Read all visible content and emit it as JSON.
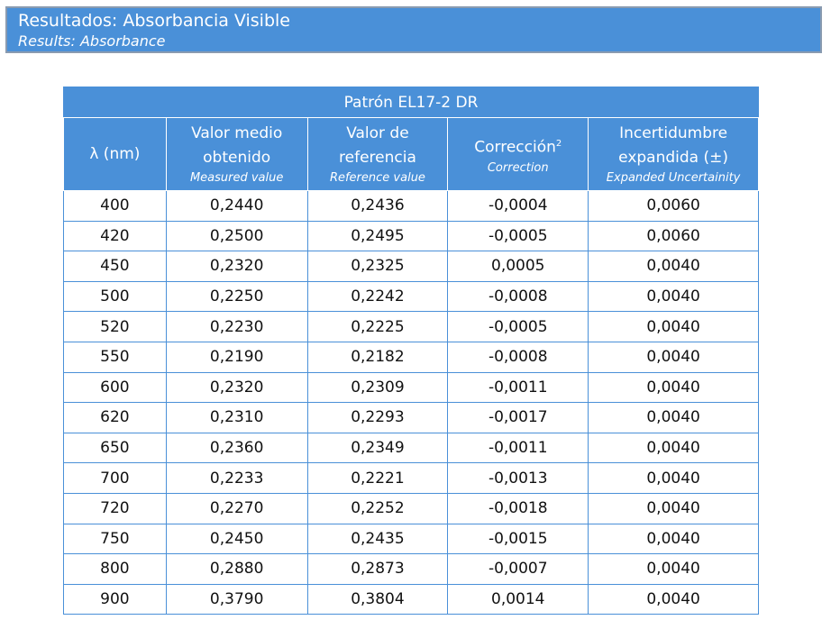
{
  "header": {
    "title": "Resultados: Absorbancia Visible",
    "subtitle": "Results: Absorbance"
  },
  "table": {
    "title": "Patrón EL17-2 DR",
    "columns": [
      {
        "label": "λ (nm)"
      },
      {
        "label": "Valor medio obtenido",
        "sublabel": "Measured value"
      },
      {
        "label": "Valor de referencia",
        "sublabel": "Reference value"
      },
      {
        "label": "Corrección",
        "superscript": "2",
        "sublabel": "Correction"
      },
      {
        "label": "Incertidumbre expandida (±)",
        "sublabel": "Expanded Uncertainity"
      }
    ],
    "rows": [
      [
        "400",
        "0,2440",
        "0,2436",
        "-0,0004",
        "0,0060"
      ],
      [
        "420",
        "0,2500",
        "0,2495",
        "-0,0005",
        "0,0060"
      ],
      [
        "450",
        "0,2320",
        "0,2325",
        "0,0005",
        "0,0040"
      ],
      [
        "500",
        "0,2250",
        "0,2242",
        "-0,0008",
        "0,0040"
      ],
      [
        "520",
        "0,2230",
        "0,2225",
        "-0,0005",
        "0,0040"
      ],
      [
        "550",
        "0,2190",
        "0,2182",
        "-0,0008",
        "0,0040"
      ],
      [
        "600",
        "0,2320",
        "0,2309",
        "-0,0011",
        "0,0040"
      ],
      [
        "620",
        "0,2310",
        "0,2293",
        "-0,0017",
        "0,0040"
      ],
      [
        "650",
        "0,2360",
        "0,2349",
        "-0,0011",
        "0,0040"
      ],
      [
        "700",
        "0,2233",
        "0,2221",
        "-0,0013",
        "0,0040"
      ],
      [
        "720",
        "0,2270",
        "0,2252",
        "-0,0018",
        "0,0040"
      ],
      [
        "750",
        "0,2450",
        "0,2435",
        "-0,0015",
        "0,0040"
      ],
      [
        "800",
        "0,2880",
        "0,2873",
        "-0,0007",
        "0,0040"
      ],
      [
        "900",
        "0,3790",
        "0,3804",
        "0,0014",
        "0,0040"
      ]
    ]
  }
}
